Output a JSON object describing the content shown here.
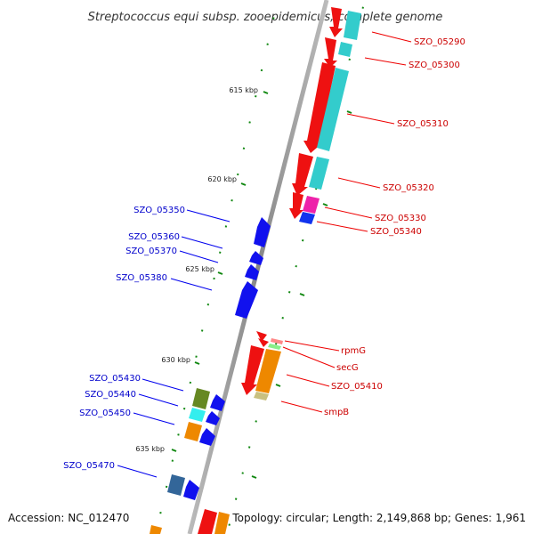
{
  "title": "Streptococcus equi subsp. zooepidemicus, complete genome",
  "footer": {
    "accession": "Accession: NC_012470",
    "summary": "Topology: circular; Length: 2,149,868 bp; Genes: 1,961"
  },
  "ticks": [
    "615 kbp",
    "620 kbp",
    "625 kbp",
    "630 kbp",
    "635 kbp"
  ],
  "right_labels": [
    "SZO_05290",
    "SZO_05300",
    "SZO_05310",
    "SZO_05320",
    "SZO_05330",
    "SZO_05340",
    "rpmG",
    "secG",
    "SZO_05410",
    "smpB"
  ],
  "left_labels": [
    "SZO_05350",
    "SZO_05360",
    "SZO_05370",
    "SZO_05380",
    "SZO_05430",
    "SZO_05440",
    "SZO_05450",
    "SZO_05470"
  ],
  "colors": {
    "backbone": "#999999",
    "reverse_gene": "#ee1111",
    "forward_gene": "#1111ee",
    "tick_mark": "#118811",
    "right_label": "#cc0000",
    "left_label": "#0000cc"
  }
}
